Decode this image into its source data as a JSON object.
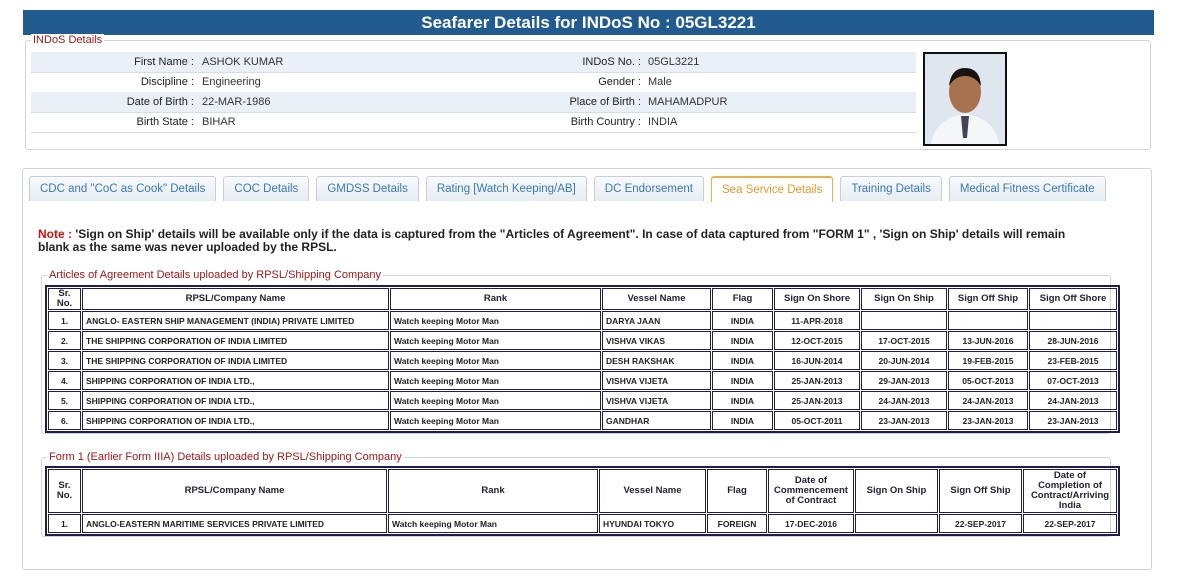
{
  "header": {
    "title": "Seafarer Details for INDoS No : 05GL3221"
  },
  "indos_details": {
    "legend": "INDoS Details",
    "rows": [
      [
        {
          "label": "First Name :",
          "value": "ASHOK KUMAR"
        },
        {
          "label": "INDoS No. :",
          "value": "05GL3221"
        }
      ],
      [
        {
          "label": "Discipline :",
          "value": "Engineering"
        },
        {
          "label": "Gender :",
          "value": "Male"
        }
      ],
      [
        {
          "label": "Date of Birth :",
          "value": "22-MAR-1986"
        },
        {
          "label": "Place of Birth :",
          "value": "MAHAMADPUR"
        }
      ],
      [
        {
          "label": "Birth State :",
          "value": "BIHAR"
        },
        {
          "label": "Birth Country :",
          "value": "INDIA"
        }
      ]
    ]
  },
  "tabs": [
    "CDC and \"CoC as Cook\" Details",
    "COC Details",
    "GMDSS Details",
    "Rating [Watch Keeping/AB]",
    "DC Endorsement",
    "Sea Service Details",
    "Training Details",
    "Medical Fitness Certificate"
  ],
  "active_tab": 5,
  "note": {
    "label": "Note :",
    "text": "'Sign on Ship' details will be available only if the data is captured from the \"Articles of Agreement\". In case of data captured from \"FORM 1\" , 'Sign on Ship' details will remain blank as the same was never uploaded by the RPSL."
  },
  "articles": {
    "legend": "Articles of Agreement Details uploaded by RPSL/Shipping Company",
    "columns": [
      "Sr. No.",
      "RPSL/Company Name",
      "Rank",
      "Vessel Name",
      "Flag",
      "Sign On Shore",
      "Sign On Ship",
      "Sign Off Ship",
      "Sign Off Shore"
    ],
    "rows": [
      [
        "1.",
        "ANGLO- EASTERN SHIP MANAGEMENT (INDIA) PRIVATE LIMITED",
        "Watch keeping Motor Man",
        "DARYA JAAN",
        "INDIA",
        "11-APR-2018",
        null,
        null,
        null
      ],
      [
        "2.",
        "THE SHIPPING CORPORATION OF INDIA LIMITED",
        "Watch keeping Motor Man",
        "VISHVA VIKAS",
        "INDIA",
        "12-OCT-2015",
        "17-OCT-2015",
        "13-JUN-2016",
        "28-JUN-2016"
      ],
      [
        "3.",
        "THE SHIPPING CORPORATION OF INDIA LIMITED",
        "Watch keeping Motor Man",
        "DESH RAKSHAK",
        "INDIA",
        "16-JUN-2014",
        "20-JUN-2014",
        "19-FEB-2015",
        "23-FEB-2015"
      ],
      [
        "4.",
        "SHIPPING CORPORATION OF INDIA LTD.,",
        "Watch keeping Motor Man",
        "VISHVA VIJETA",
        "INDIA",
        "25-JAN-2013",
        "29-JAN-2013",
        "05-OCT-2013",
        "07-OCT-2013"
      ],
      [
        "5.",
        "SHIPPING CORPORATION OF INDIA LTD.,",
        "Watch keeping Motor Man",
        "VISHVA VIJETA",
        "INDIA",
        "25-JAN-2013",
        "24-JAN-2013",
        "24-JAN-2013",
        "24-JAN-2013"
      ],
      [
        "6.",
        "SHIPPING CORPORATION OF INDIA LTD.,",
        "Watch keeping Motor Man",
        "GANDHAR",
        "INDIA",
        "05-OCT-2011",
        "23-JAN-2013",
        "23-JAN-2013",
        "23-JAN-2013"
      ]
    ]
  },
  "form1": {
    "legend": "Form 1 (Earlier Form IIIA) Details uploaded by RPSL/Shipping Company",
    "columns": [
      "Sr. No.",
      "RPSL/Company Name",
      "Rank",
      "Vessel Name",
      "Flag",
      "Date of Commencement of Contract",
      "Sign On Ship",
      "Sign Off Ship",
      "Date of Completion of Contract/Arriving India"
    ],
    "rows": [
      [
        "1.",
        "ANGLO-EASTERN MARITIME SERVICES PRIVATE LIMITED",
        "Watch keeping Motor Man",
        "HYUNDAI TOKYO",
        "FOREIGN",
        "17-DEC-2016",
        null,
        "22-SEP-2017",
        "22-SEP-2017"
      ]
    ]
  }
}
